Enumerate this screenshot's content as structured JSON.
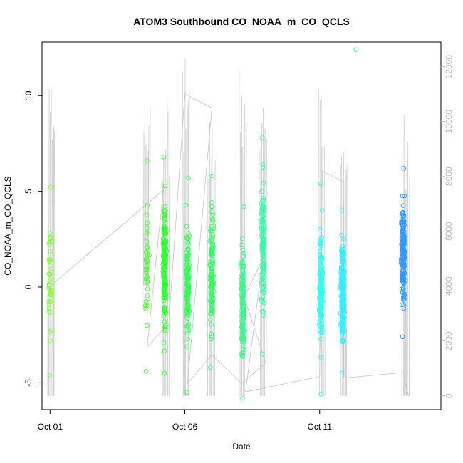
{
  "chart_data": {
    "type": "scatter",
    "title": "ATOM3 Southbound CO_NOAA_m_CO_QCLS",
    "xlabel": "Date",
    "ylabel": "CO_NOAA_m_CO_QCLS",
    "x_ticks": [
      "Oct 01",
      "Oct 06",
      "Oct 11"
    ],
    "x_tick_days": [
      1,
      6,
      11
    ],
    "xlim": [
      0.7,
      15.5
    ],
    "ylim": [
      -6.4,
      12.8
    ],
    "y_ticks": [
      -5,
      0,
      5,
      10
    ],
    "y2_ticks": [
      0,
      2000,
      4000,
      6000,
      8000,
      10000,
      12000
    ],
    "y2lim": [
      -500,
      12900
    ],
    "y2_label": "",
    "grid": false,
    "legend": "none",
    "series_color_note": "points coloured by date, from yellow-green (Oct 01) through green to cyan and blue (Oct 15)",
    "point_clusters": [
      {
        "day": 1.0,
        "ymin": -4.6,
        "ymax": 5.2,
        "n": 45,
        "color": "#80ff33"
      },
      {
        "day": 4.6,
        "ymin": -4.4,
        "ymax": 6.6,
        "n": 40,
        "color": "#4dff33"
      },
      {
        "day": 5.25,
        "ymin": -4.5,
        "ymax": 6.8,
        "n": 160,
        "color": "#33ff33"
      },
      {
        "day": 6.1,
        "ymin": -5.5,
        "ymax": 5.7,
        "n": 130,
        "color": "#33ff55"
      },
      {
        "day": 7.0,
        "ymin": -4.2,
        "ymax": 5.8,
        "n": 130,
        "color": "#33ff66"
      },
      {
        "day": 8.15,
        "ymin": -5.8,
        "ymax": 4.2,
        "n": 150,
        "color": "#33ff88"
      },
      {
        "day": 8.9,
        "ymin": -3.5,
        "ymax": 7.8,
        "n": 130,
        "color": "#33ffaa"
      },
      {
        "day": 12.4,
        "ymin": 12.4,
        "ymax": 12.4,
        "n": 1,
        "color": "#33ffaa"
      },
      {
        "day": 11.05,
        "ymin": -5.6,
        "ymax": 5.4,
        "n": 140,
        "color": "#33ffee"
      },
      {
        "day": 11.85,
        "ymin": -4.5,
        "ymax": 4.0,
        "n": 180,
        "color": "#33eeff"
      },
      {
        "day": 14.1,
        "ymin": -2.6,
        "ymax": 6.2,
        "n": 200,
        "color": "#3399ff"
      }
    ],
    "altitude_profiles": [
      {
        "day": 1.05,
        "min": 0,
        "max": 11700
      },
      {
        "day": 4.6,
        "min": 4000,
        "max": 12300
      },
      {
        "day": 5.3,
        "min": 0,
        "max": 10800
      },
      {
        "day": 6.05,
        "min": 0,
        "max": 12300
      },
      {
        "day": 7.0,
        "min": 0,
        "max": 10500
      },
      {
        "day": 8.15,
        "min": 0,
        "max": 12000
      },
      {
        "day": 8.9,
        "min": 0,
        "max": 10800
      },
      {
        "day": 11.1,
        "min": 0,
        "max": 11500
      },
      {
        "day": 11.9,
        "min": 0,
        "max": 10400
      },
      {
        "day": 14.2,
        "min": 0,
        "max": 10300
      }
    ],
    "altitude_track": [
      [
        1.0,
        4000
      ],
      [
        5.2,
        7500
      ],
      [
        4.6,
        1800
      ],
      [
        5.4,
        2600
      ],
      [
        6.0,
        11000
      ],
      [
        7.0,
        10500
      ],
      [
        6.1,
        450
      ],
      [
        7.0,
        1500
      ],
      [
        8.1,
        450
      ],
      [
        9.0,
        1200
      ],
      [
        8.2,
        3600
      ],
      [
        8.9,
        5000
      ],
      [
        8.25,
        150
      ],
      [
        11.0,
        700
      ],
      [
        11.1,
        8200
      ],
      [
        11.9,
        7800
      ],
      [
        11.9,
        650
      ],
      [
        14.1,
        850
      ],
      [
        14.3,
        0
      ]
    ]
  }
}
